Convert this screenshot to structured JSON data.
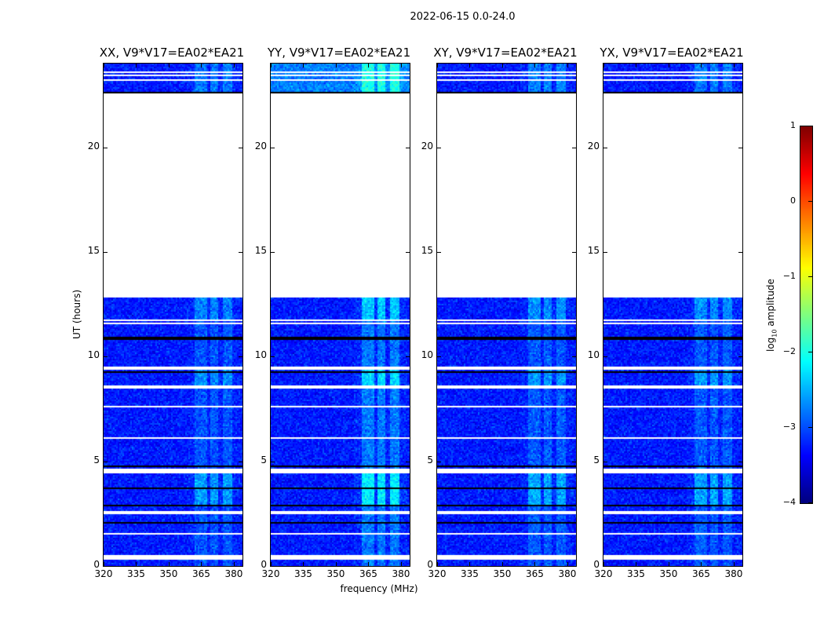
{
  "chart_data": {
    "type": "heatmap",
    "title": "2022-06-15 0.0-24.0",
    "xlabel": "frequency (MHz)",
    "ylabel": "UT (hours)",
    "xlim": [
      320,
      384
    ],
    "ylim": [
      0,
      24
    ],
    "xticks": [
      "320",
      "335",
      "350",
      "365",
      "380"
    ],
    "yticks": [
      "0",
      "5",
      "10",
      "15",
      "20"
    ],
    "panels": [
      {
        "title": "XX, V9*V17=EA02*EA21",
        "band_boost": 0.55
      },
      {
        "title": "YY, V9*V17=EA02*EA21",
        "band_boost": 0.9
      },
      {
        "title": "XY, V9*V17=EA02*EA21",
        "band_boost": 0.6
      },
      {
        "title": "YX, V9*V17=EA02*EA21",
        "band_boost": 0.6
      }
    ],
    "bright_bands_mhz": [
      [
        362,
        368
      ],
      [
        369,
        373
      ],
      [
        375,
        379
      ]
    ],
    "no_data_hours": [
      [
        12.8,
        22.6
      ],
      [
        11.72,
        11.8
      ],
      [
        11.55,
        11.62
      ],
      [
        9.4,
        9.55
      ],
      [
        8.45,
        8.6
      ],
      [
        7.6,
        7.68
      ],
      [
        6.08,
        6.14
      ],
      [
        4.45,
        4.62
      ],
      [
        2.45,
        2.65
      ],
      [
        1.48,
        1.55
      ],
      [
        0.3,
        0.5
      ],
      [
        23.2,
        23.25
      ],
      [
        23.4,
        23.45
      ],
      [
        23.55,
        23.6
      ]
    ],
    "zero_hours": [
      [
        10.78,
        10.92
      ],
      [
        9.2,
        9.28
      ],
      [
        5.3,
        5.36
      ],
      [
        4.7,
        4.8
      ],
      [
        3.65,
        3.72
      ],
      [
        2.82,
        2.95
      ],
      [
        2.05,
        2.1
      ],
      [
        2.14,
        2.18
      ],
      [
        22.6,
        22.68
      ],
      [
        0.2,
        0.24
      ]
    ],
    "colorbar": {
      "label": "log10 amplitude",
      "label_main": "log",
      "label_sub": "10",
      "label_rest": " amplitude",
      "range": [
        -4,
        1
      ],
      "ticks": [
        "1",
        "0",
        "−1",
        "−2",
        "−3",
        "−4"
      ],
      "colormap": "jet"
    }
  }
}
